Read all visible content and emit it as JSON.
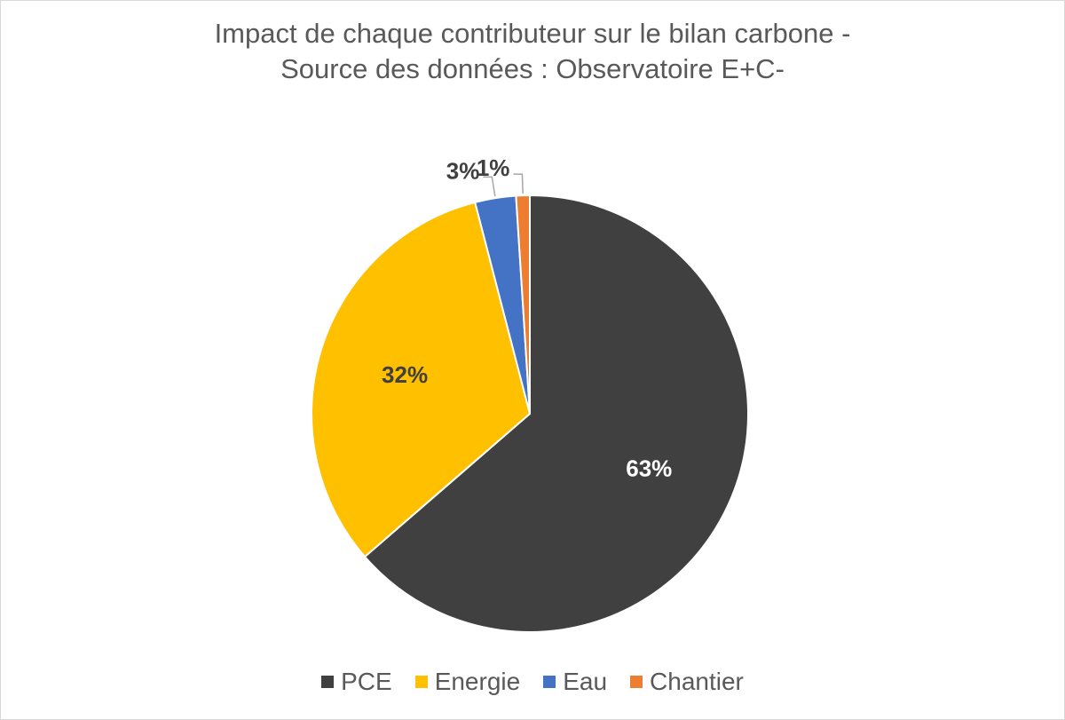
{
  "chart_data": {
    "type": "pie",
    "title_lines": [
      "Impact de chaque contributeur sur le bilan carbone -",
      "Source des données : Observatoire E+C-"
    ],
    "categories": [
      "PCE",
      "Energie",
      "Eau",
      "Chantier"
    ],
    "values": [
      63,
      32,
      3,
      1
    ],
    "labels": [
      "63%",
      "32%",
      "3%",
      "1%"
    ],
    "colors": [
      "#404040",
      "#FFC000",
      "#4472C4",
      "#ED7D31"
    ],
    "label_colors": [
      "#ffffff",
      "#404040",
      "#404040",
      "#404040"
    ],
    "legend_position": "bottom"
  }
}
